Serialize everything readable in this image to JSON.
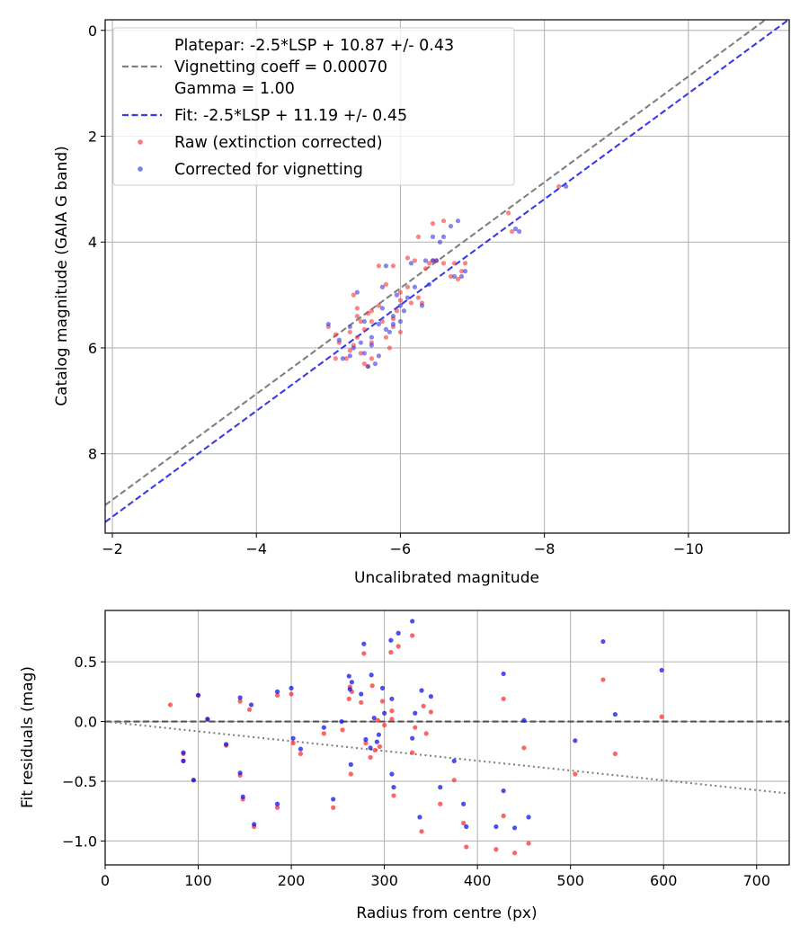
{
  "chart_data": [
    {
      "type": "scatter",
      "title": "",
      "xlabel": "Uncalibrated magnitude",
      "ylabel": "Catalog magnitude (GAIA G band)",
      "xlim": [
        -1.9,
        -11.4
      ],
      "ylim": [
        9.5,
        -0.2
      ],
      "x_inverted": true,
      "y_inverted": true,
      "xticks": [
        -2,
        -4,
        -6,
        -8,
        -10
      ],
      "xtick_labels": [
        "−2",
        "−4",
        "−6",
        "−8",
        "−10"
      ],
      "yticks": [
        0,
        2,
        4,
        6,
        8
      ],
      "ytick_labels": [
        "0",
        "2",
        "4",
        "6",
        "8"
      ],
      "grid": true,
      "legend_position": "top-left",
      "lines": [
        {
          "name": "platepar",
          "color": "#808080",
          "style": "dashed",
          "slope": 1.0,
          "intercept": 10.87,
          "legend": [
            "Platepar: -2.5*LSP + 10.87 +/- 0.43",
            "Vignetting coeff = 0.00070",
            "Gamma = 1.00"
          ]
        },
        {
          "name": "fit",
          "color": "#3a3ae8",
          "style": "dashed",
          "slope": 1.0,
          "intercept": 11.19,
          "legend": [
            "Fit: -2.5*LSP + 11.19 +/- 0.45"
          ]
        }
      ],
      "series": [
        {
          "name": "Raw (extinction corrected)",
          "color": "#ff3030",
          "points": [
            [
              -5.0,
              5.6
            ],
            [
              -5.1,
              5.75
            ],
            [
              -5.15,
              5.9
            ],
            [
              -5.1,
              6.2
            ],
            [
              -5.3,
              6.05
            ],
            [
              -5.25,
              6.2
            ],
            [
              -5.35,
              5.95
            ],
            [
              -5.4,
              5.8
            ],
            [
              -5.45,
              6.1
            ],
            [
              -5.5,
              6.3
            ],
            [
              -5.55,
              6.35
            ],
            [
              -5.6,
              6.2
            ],
            [
              -5.6,
              5.9
            ],
            [
              -5.5,
              5.65
            ],
            [
              -5.3,
              5.7
            ],
            [
              -5.4,
              5.4
            ],
            [
              -5.35,
              5.0
            ],
            [
              -5.4,
              5.25
            ],
            [
              -5.6,
              5.3
            ],
            [
              -5.7,
              5.2
            ],
            [
              -5.7,
              4.45
            ],
            [
              -5.8,
              4.8
            ],
            [
              -5.9,
              4.45
            ],
            [
              -5.75,
              5.5
            ],
            [
              -5.8,
              5.8
            ],
            [
              -5.9,
              5.6
            ],
            [
              -5.95,
              5.3
            ],
            [
              -6.0,
              5.1
            ],
            [
              -6.0,
              4.95
            ],
            [
              -5.9,
              5.45
            ],
            [
              -6.1,
              4.85
            ],
            [
              -6.1,
              4.3
            ],
            [
              -6.2,
              4.35
            ],
            [
              -6.25,
              3.9
            ],
            [
              -6.3,
              5.15
            ],
            [
              -6.35,
              4.5
            ],
            [
              -6.4,
              4.4
            ],
            [
              -6.45,
              4.35
            ],
            [
              -6.45,
              3.65
            ],
            [
              -6.5,
              4.35
            ],
            [
              -6.6,
              3.6
            ],
            [
              -6.6,
              4.4
            ],
            [
              -6.7,
              4.65
            ],
            [
              -6.75,
              4.4
            ],
            [
              -6.8,
              4.7
            ],
            [
              -6.85,
              4.55
            ],
            [
              -6.15,
              5.15
            ],
            [
              -5.6,
              5.5
            ],
            [
              -5.85,
              6.0
            ],
            [
              -7.5,
              3.45
            ],
            [
              -7.55,
              3.8
            ],
            [
              -8.2,
              2.95
            ],
            [
              -6.9,
              4.4
            ],
            [
              -6.0,
              5.7
            ],
            [
              -5.55,
              5.35
            ],
            [
              -6.25,
              5.05
            ],
            [
              -5.45,
              5.5
            ]
          ]
        },
        {
          "name": "Corrected for vignetting",
          "color": "#3333ee",
          "points": [
            [
              -5.0,
              5.55
            ],
            [
              -5.15,
              5.85
            ],
            [
              -5.2,
              6.2
            ],
            [
              -5.35,
              6.0
            ],
            [
              -5.3,
              5.6
            ],
            [
              -5.45,
              5.9
            ],
            [
              -5.5,
              6.1
            ],
            [
              -5.55,
              6.35
            ],
            [
              -5.6,
              5.95
            ],
            [
              -5.65,
              6.3
            ],
            [
              -5.7,
              6.15
            ],
            [
              -5.7,
              5.55
            ],
            [
              -5.75,
              5.25
            ],
            [
              -5.75,
              4.85
            ],
            [
              -5.8,
              4.45
            ],
            [
              -5.85,
              5.7
            ],
            [
              -5.9,
              5.4
            ],
            [
              -5.95,
              5.0
            ],
            [
              -6.0,
              5.5
            ],
            [
              -6.05,
              5.3
            ],
            [
              -6.1,
              5.05
            ],
            [
              -6.2,
              4.85
            ],
            [
              -6.3,
              5.2
            ],
            [
              -6.35,
              4.35
            ],
            [
              -6.4,
              4.8
            ],
            [
              -6.45,
              4.35
            ],
            [
              -6.5,
              4.35
            ],
            [
              -6.55,
              4.0
            ],
            [
              -6.6,
              3.9
            ],
            [
              -6.7,
              3.7
            ],
            [
              -6.75,
              4.65
            ],
            [
              -6.8,
              3.6
            ],
            [
              -6.85,
              4.65
            ],
            [
              -6.9,
              4.55
            ],
            [
              -7.6,
              3.75
            ],
            [
              -7.65,
              3.8
            ],
            [
              -8.3,
              2.95
            ],
            [
              -5.4,
              4.95
            ],
            [
              -5.5,
              5.5
            ],
            [
              -5.6,
              5.8
            ],
            [
              -5.9,
              5.55
            ],
            [
              -6.0,
              5.2
            ],
            [
              -6.15,
              4.4
            ],
            [
              -5.3,
              6.15
            ],
            [
              -5.8,
              5.65
            ],
            [
              -6.45,
              3.9
            ]
          ]
        }
      ]
    },
    {
      "type": "scatter",
      "title": "",
      "xlabel": "Radius from centre (px)",
      "ylabel": "Fit residuals (mag)",
      "xlim": [
        0,
        735
      ],
      "ylim": [
        -1.2,
        0.93
      ],
      "xticks": [
        0,
        100,
        200,
        300,
        400,
        500,
        600,
        700
      ],
      "xtick_labels": [
        "0",
        "100",
        "200",
        "300",
        "400",
        "500",
        "600",
        "700"
      ],
      "yticks": [
        -1.0,
        -0.5,
        0.0,
        0.5
      ],
      "ytick_labels": [
        "−1.0",
        "−0.5",
        "0.0",
        "0.5"
      ],
      "grid": true,
      "lines": [
        {
          "name": "zero",
          "color": "#555555",
          "style": "dashed",
          "slope": 0.0,
          "intercept": 0.0
        },
        {
          "name": "vignetting-trend",
          "color": "#808080",
          "style": "dotted",
          "slope": -0.00082,
          "intercept": 0.0
        }
      ],
      "series": [
        {
          "name": "Raw",
          "color": "#ff3030",
          "points": [
            [
              70,
              0.14
            ],
            [
              84,
              -0.27
            ],
            [
              84,
              -0.33
            ],
            [
              95,
              -0.49
            ],
            [
              100,
              0.22
            ],
            [
              110,
              0.02
            ],
            [
              130,
              -0.2
            ],
            [
              145,
              -0.45
            ],
            [
              145,
              0.17
            ],
            [
              148,
              -0.65
            ],
            [
              155,
              0.1
            ],
            [
              160,
              -0.88
            ],
            [
              185,
              0.22
            ],
            [
              185,
              -0.72
            ],
            [
              200,
              0.23
            ],
            [
              202,
              -0.18
            ],
            [
              210,
              -0.27
            ],
            [
              235,
              -0.1
            ],
            [
              245,
              -0.72
            ],
            [
              255,
              -0.07
            ],
            [
              262,
              0.19
            ],
            [
              263,
              0.29
            ],
            [
              264,
              -0.44
            ],
            [
              265,
              0.25
            ],
            [
              275,
              0.16
            ],
            [
              278,
              0.57
            ],
            [
              280,
              -0.18
            ],
            [
              285,
              -0.3
            ],
            [
              287,
              0.3
            ],
            [
              290,
              -0.24
            ],
            [
              293,
              0.01
            ],
            [
              295,
              -0.21
            ],
            [
              298,
              0.17
            ],
            [
              300,
              -0.03
            ],
            [
              307,
              0.58
            ],
            [
              308,
              0.02
            ],
            [
              308,
              0.09
            ],
            [
              310,
              -0.62
            ],
            [
              315,
              0.63
            ],
            [
              330,
              0.72
            ],
            [
              330,
              -0.26
            ],
            [
              333,
              -0.05
            ],
            [
              340,
              -0.92
            ],
            [
              342,
              0.13
            ],
            [
              345,
              -0.1
            ],
            [
              350,
              0.08
            ],
            [
              360,
              -0.69
            ],
            [
              375,
              -0.49
            ],
            [
              385,
              -0.85
            ],
            [
              388,
              -1.05
            ],
            [
              420,
              -1.07
            ],
            [
              428,
              -0.79
            ],
            [
              428,
              0.19
            ],
            [
              440,
              -1.1
            ],
            [
              450,
              -0.22
            ],
            [
              455,
              -1.02
            ],
            [
              505,
              -0.44
            ],
            [
              535,
              0.35
            ],
            [
              548,
              -0.27
            ],
            [
              598,
              0.04
            ]
          ]
        },
        {
          "name": "Corrected",
          "color": "#1111ee",
          "points": [
            [
              84,
              -0.26
            ],
            [
              84,
              -0.33
            ],
            [
              95,
              -0.49
            ],
            [
              100,
              0.22
            ],
            [
              110,
              0.02
            ],
            [
              130,
              -0.19
            ],
            [
              145,
              -0.43
            ],
            [
              145,
              0.2
            ],
            [
              148,
              -0.63
            ],
            [
              157,
              0.14
            ],
            [
              160,
              -0.86
            ],
            [
              185,
              0.25
            ],
            [
              185,
              -0.69
            ],
            [
              200,
              0.28
            ],
            [
              202,
              -0.14
            ],
            [
              210,
              -0.23
            ],
            [
              235,
              -0.05
            ],
            [
              245,
              -0.65
            ],
            [
              254,
              0.0
            ],
            [
              262,
              0.38
            ],
            [
              263,
              0.27
            ],
            [
              264,
              -0.36
            ],
            [
              265,
              0.33
            ],
            [
              275,
              0.23
            ],
            [
              278,
              0.65
            ],
            [
              280,
              -0.15
            ],
            [
              285,
              -0.22
            ],
            [
              286,
              0.39
            ],
            [
              289,
              0.03
            ],
            [
              292,
              -0.17
            ],
            [
              294,
              -0.11
            ],
            [
              298,
              0.28
            ],
            [
              300,
              0.07
            ],
            [
              307,
              0.68
            ],
            [
              308,
              0.19
            ],
            [
              308,
              -0.44
            ],
            [
              310,
              -0.55
            ],
            [
              315,
              0.74
            ],
            [
              330,
              0.84
            ],
            [
              330,
              -0.14
            ],
            [
              333,
              0.07
            ],
            [
              338,
              -0.8
            ],
            [
              340,
              0.26
            ],
            [
              350,
              0.21
            ],
            [
              360,
              -0.55
            ],
            [
              375,
              -0.33
            ],
            [
              385,
              -0.69
            ],
            [
              388,
              -0.88
            ],
            [
              420,
              -0.88
            ],
            [
              428,
              0.4
            ],
            [
              428,
              -0.58
            ],
            [
              440,
              -0.89
            ],
            [
              450,
              0.01
            ],
            [
              455,
              -0.8
            ],
            [
              505,
              -0.16
            ],
            [
              535,
              0.67
            ],
            [
              548,
              0.06
            ],
            [
              598,
              0.43
            ]
          ]
        }
      ]
    }
  ]
}
